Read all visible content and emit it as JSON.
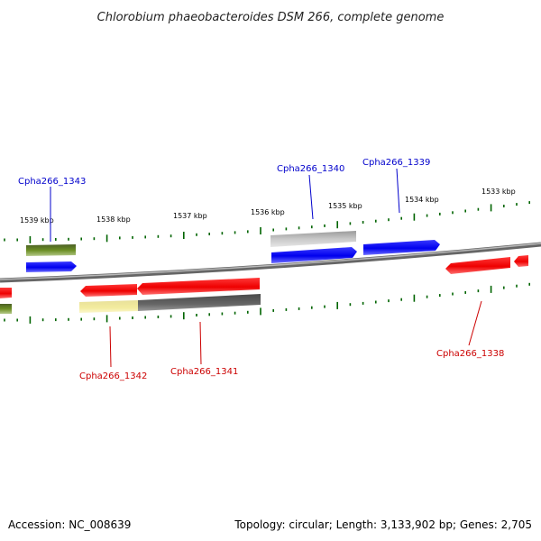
{
  "title": "Chlorobium phaeobacteroides DSM 266, complete genome",
  "footer": {
    "accession": "Accession: NC_008639",
    "topology": "Topology: circular; Length: 3,133,902 bp; Genes: 2,705"
  },
  "tick_labels": [
    "1539 kbp",
    "1538 kbp",
    "1537 kbp",
    "1536 kbp",
    "1535 kbp",
    "1534 kbp",
    "1533 kbp"
  ],
  "gene_labels": {
    "top": [
      "Cpha266_1343",
      "Cpha266_1340",
      "Cpha266_1339"
    ],
    "bottom": [
      "Cpha266_1342",
      "Cpha266_1341",
      "Cpha266_1338"
    ]
  },
  "colors": {
    "forward_gene": "#0000ee",
    "reverse_gene": "#ee0000",
    "rna_gene": "#556b2f",
    "pseudo_gene": "#a9a9a9",
    "dark_gene": "#555555",
    "pale_gene": "#f0e68c",
    "tick": "#006400",
    "backbone": "#888888"
  }
}
